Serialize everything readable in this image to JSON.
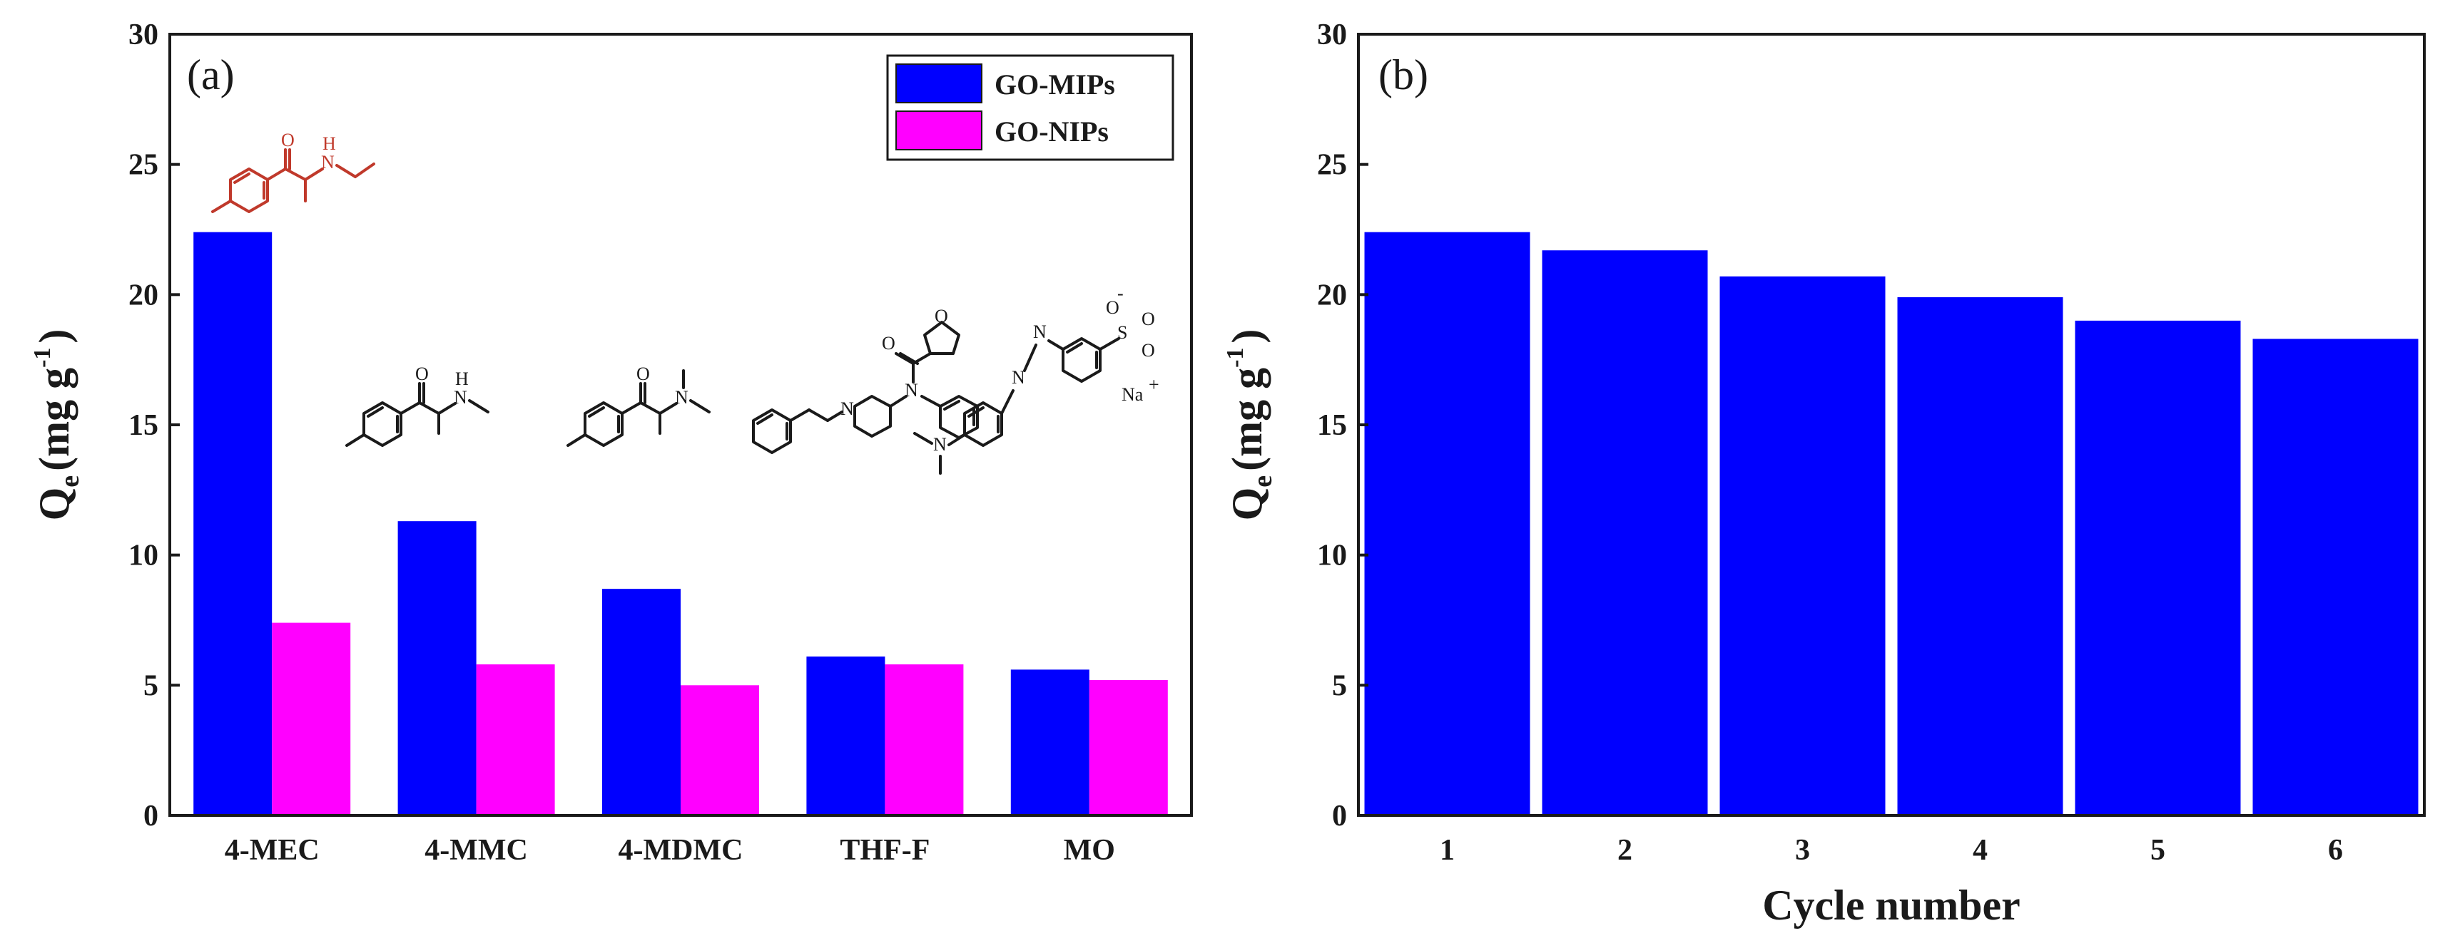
{
  "chart_data": [
    {
      "type": "bar",
      "panel_label": "(a)",
      "ylabel": "Q",
      "ylabel_sub": "e",
      "ylabel_unit": "(mg g",
      "ylabel_exp": "-1",
      "ylabel_close": ")",
      "ylim": [
        0,
        30
      ],
      "yticks": [
        "0",
        "5",
        "10",
        "15",
        "20",
        "25",
        "30"
      ],
      "categories": [
        "4-MEC",
        "4-MMC",
        "4-MDMC",
        "THF-F",
        "MO"
      ],
      "series": [
        {
          "name": "GO-MIPs",
          "color": "#0000ff",
          "values": [
            22.4,
            11.3,
            8.7,
            6.1,
            5.6
          ]
        },
        {
          "name": "GO-NIPs",
          "color": "#ff00ff",
          "values": [
            7.4,
            5.8,
            5.0,
            5.8,
            5.2
          ]
        }
      ],
      "legend_position": "top-right",
      "structure_labels": {
        "amine_h": "H",
        "n": "N",
        "o": "O",
        "sodium": "Na",
        "sulfonate_minus": "-",
        "plus": "+"
      }
    },
    {
      "type": "bar",
      "panel_label": "(b)",
      "ylabel": "Q",
      "ylabel_sub": "e",
      "ylabel_unit": "(mg g",
      "ylabel_exp": "-1",
      "ylabel_close": ")",
      "xlabel": "Cycle number",
      "ylim": [
        0,
        30
      ],
      "yticks": [
        "0",
        "5",
        "10",
        "15",
        "20",
        "25",
        "30"
      ],
      "categories": [
        "1",
        "2",
        "3",
        "4",
        "5",
        "6"
      ],
      "series": [
        {
          "name": "Q_e",
          "color": "#0000ff",
          "values": [
            22.4,
            21.7,
            20.7,
            19.9,
            19.0,
            18.3
          ]
        }
      ]
    }
  ]
}
